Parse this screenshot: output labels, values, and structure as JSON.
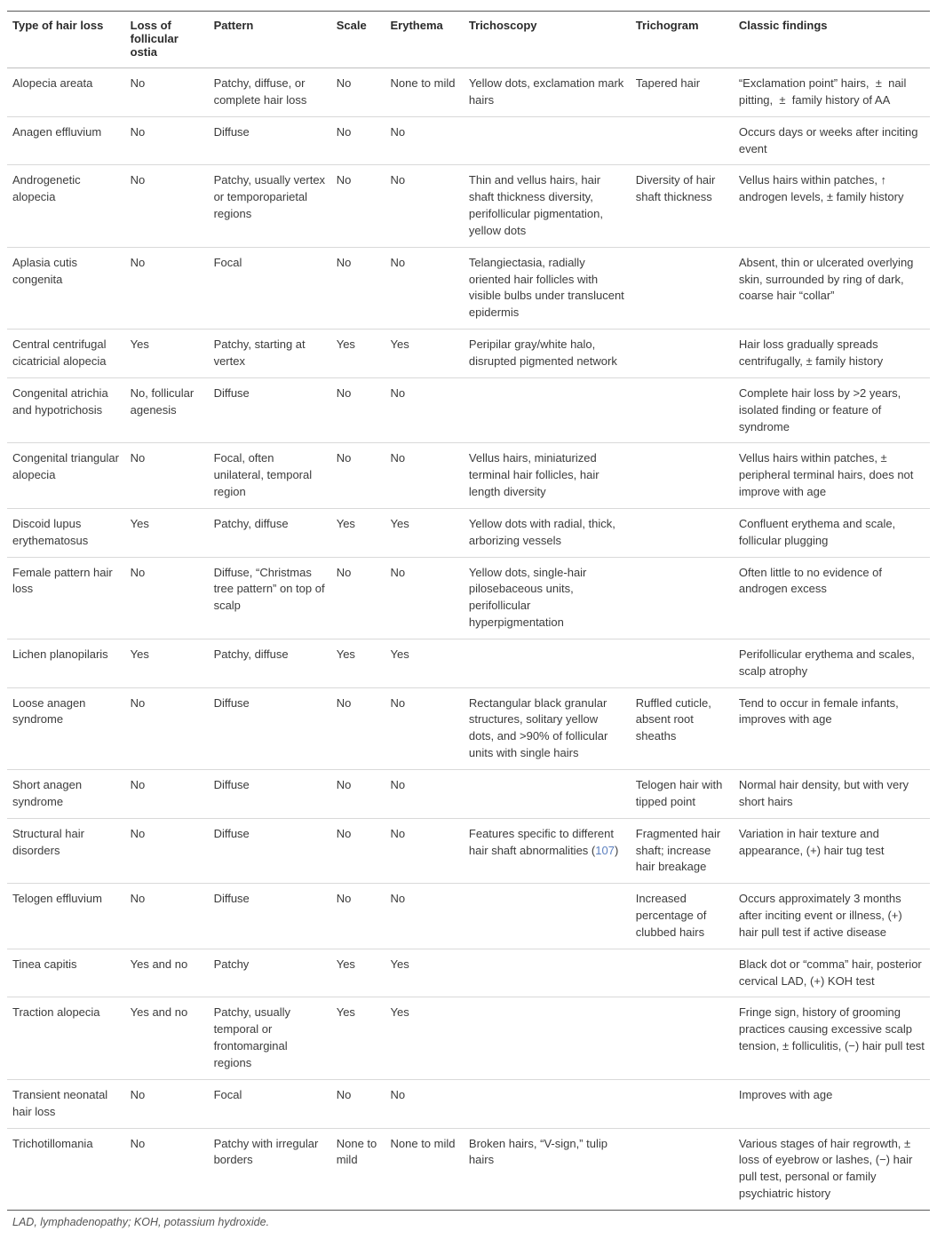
{
  "table": {
    "columns": [
      "Type of hair loss",
      "Loss of follicular ostia",
      "Pattern",
      "Scale",
      "Erythema",
      "Trichoscopy",
      "Trichogram",
      "Classic findings"
    ],
    "column_widths_pct": [
      12,
      8.5,
      12.5,
      5.5,
      8,
      17,
      10.5,
      20
    ],
    "header_font_size": 13,
    "body_font_size": 13,
    "border_color_heavy": "#595959",
    "border_color_light": "#d9d9d9",
    "text_color": "#3b3b3b",
    "background_color": "#ffffff",
    "rows": [
      [
        "Alopecia areata",
        "No",
        "Patchy, diffuse, or complete hair loss",
        "No",
        "None to mild",
        "Yellow dots, exclamation mark hairs",
        "Tapered hair",
        "“Exclamation point” hairs,  ±  nail pitting,  ±  family history of AA"
      ],
      [
        "Anagen effluvium",
        "No",
        "Diffuse",
        "No",
        "No",
        "",
        "",
        "Occurs days or weeks after inciting event"
      ],
      [
        "Androgenetic alopecia",
        "No",
        "Patchy, usually vertex or temporoparietal regions",
        "No",
        "No",
        "Thin and vellus hairs, hair shaft thickness diversity, perifollicular pigmentation, yellow dots",
        "Diversity of hair shaft thickness",
        "Vellus hairs within patches, ↑ androgen levels, ± family history"
      ],
      [
        "Aplasia cutis congenita",
        "No",
        "Focal",
        "No",
        "No",
        "Telangiectasia, radially oriented hair follicles with visible bulbs under translucent epidermis",
        "",
        "Absent, thin or ulcerated overlying skin, surrounded by ring of dark, coarse hair “collar”"
      ],
      [
        "Central centrifugal cicatricial alopecia",
        "Yes",
        "Patchy, starting at vertex",
        "Yes",
        "Yes",
        "Peripilar gray/white halo, disrupted pigmented network",
        "",
        "Hair loss gradually spreads centrifugally, ± family history"
      ],
      [
        "Congenital atrichia and hypotrichosis",
        "No, follicular agenesis",
        "Diffuse",
        "No",
        "No",
        "",
        "",
        "Complete hair loss by >2 years, isolated finding or feature of syndrome"
      ],
      [
        "Congenital triangular alopecia",
        "No",
        "Focal, often unilateral, temporal region",
        "No",
        "No",
        "Vellus hairs, miniaturized terminal hair follicles, hair length diversity",
        "",
        "Vellus hairs within patches, ± peripheral terminal hairs, does not improve with age"
      ],
      [
        "Discoid lupus erythematosus",
        "Yes",
        "Patchy, diffuse",
        "Yes",
        "Yes",
        "Yellow dots with radial, thick, arborizing vessels",
        "",
        "Confluent erythema and scale, follicular plugging"
      ],
      [
        "Female pattern hair loss",
        "No",
        "Diffuse, “Christmas tree pattern” on top of scalp",
        "No",
        "No",
        "Yellow dots, single-hair pilosebaceous units, perifollicular hyperpigmentation",
        "",
        "Often little to no evidence of androgen excess"
      ],
      [
        "Lichen planopilaris",
        "Yes",
        "Patchy, diffuse",
        "Yes",
        "Yes",
        "",
        "",
        "Perifollicular erythema and scales, scalp atrophy"
      ],
      [
        "Loose anagen syndrome",
        "No",
        "Diffuse",
        "No",
        "No",
        "Rectangular black granular structures, solitary yellow dots, and >90% of follicular units with single hairs",
        "Ruffled cuticle, absent root sheaths",
        "Tend to occur in female infants, improves with age"
      ],
      [
        "Short anagen syndrome",
        "No",
        "Diffuse",
        "No",
        "No",
        "",
        "Telogen hair with tipped point",
        "Normal hair density, but with very short hairs"
      ],
      [
        "Structural hair disorders",
        "No",
        "Diffuse",
        "No",
        "No",
        "Features specific to different hair shaft abnormalities (107)",
        "Fragmented hair shaft; increase hair breakage",
        "Variation in hair texture and appearance, (+) hair tug test"
      ],
      [
        "Telogen effluvium",
        "No",
        "Diffuse",
        "No",
        "No",
        "",
        "Increased percentage of clubbed hairs",
        "Occurs approximately 3 months after inciting event or illness, (+) hair pull test if active disease"
      ],
      [
        "Tinea capitis",
        "Yes and no",
        "Patchy",
        "Yes",
        "Yes",
        "",
        "",
        "Black dot or “comma” hair, posterior cervical LAD, (+) KOH test"
      ],
      [
        "Traction alopecia",
        "Yes and no",
        "Patchy, usually temporal or frontomarginal regions",
        "Yes",
        "Yes",
        "",
        "",
        "Fringe sign, history of grooming practices causing excessive scalp tension, ± folliculitis, (−) hair pull test"
      ],
      [
        "Transient neonatal hair loss",
        "No",
        "Focal",
        "No",
        "No",
        "",
        "",
        "Improves with age"
      ],
      [
        "Trichotillomania",
        "No",
        "Patchy with irregular borders",
        "None to mild",
        "None to mild",
        "Broken hairs, “V-sign,” tulip hairs",
        "",
        "Various stages of hair regrowth, ± loss of eyebrow or lashes, (−) hair pull test, personal or family psychiatric history"
      ]
    ],
    "ref_text": "107",
    "ref_color": "#5b7fbf"
  },
  "footnote": "LAD, lymphadenopathy; KOH, potassium hydroxide."
}
